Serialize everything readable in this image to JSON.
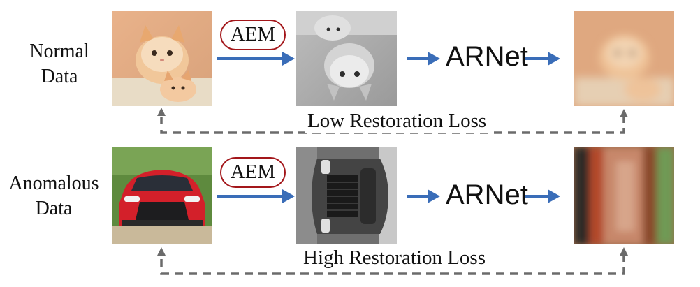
{
  "rows": [
    {
      "label_line1": "Normal",
      "label_line2": "Data",
      "module": "AEM",
      "network": "ARNet",
      "loss": "Low Restoration Loss",
      "input_image": "cat-photo",
      "transformed_image": "flipped-grayscale-cat",
      "restored_image": "blurry-cat-reconstruction"
    },
    {
      "label_line1": "Anomalous",
      "label_line2": "Data",
      "module": "AEM",
      "network": "ARNet",
      "loss": "High Restoration Loss",
      "input_image": "red-car-photo",
      "transformed_image": "rotated-grayscale-car",
      "restored_image": "blurry-car-reconstruction"
    }
  ],
  "colors": {
    "arrow_blue": "#3a6db8",
    "dashed_gray": "#6b6b6b",
    "aem_border": "#a3161a"
  }
}
